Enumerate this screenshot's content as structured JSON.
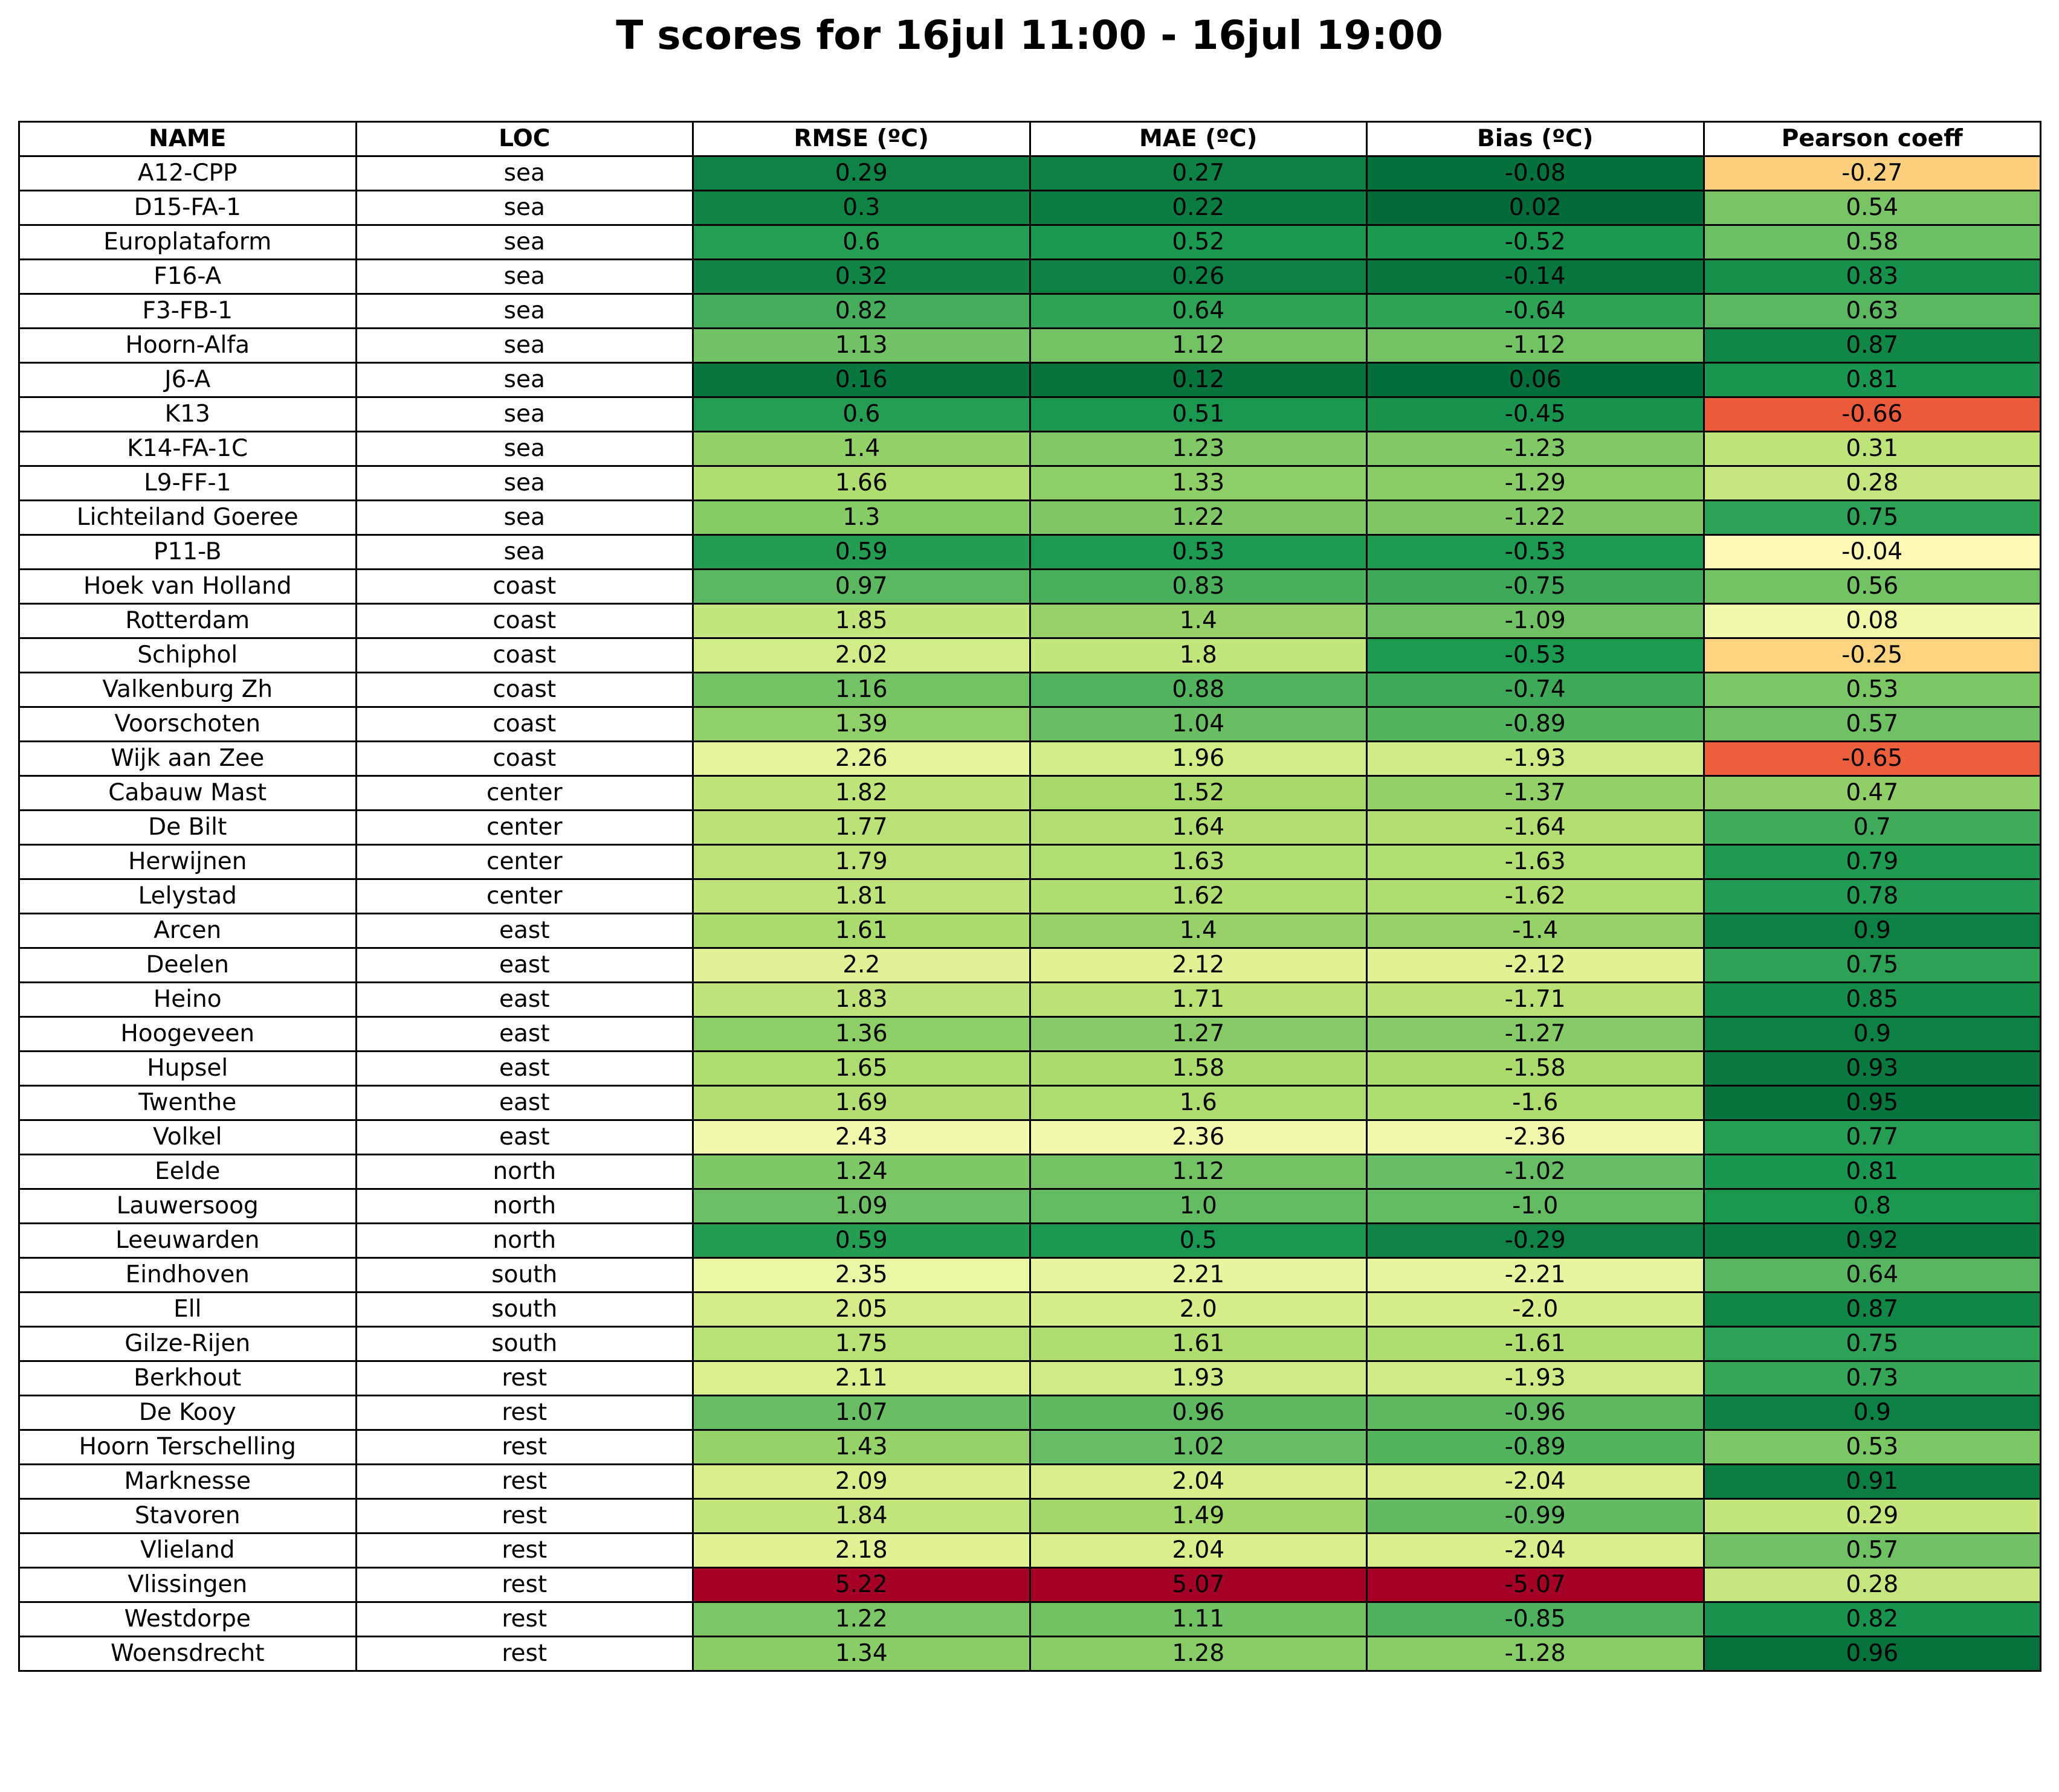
{
  "chart_data": {
    "type": "table",
    "title": "T scores for 16jul 11:00 - 16jul 19:00",
    "columns": [
      "NAME",
      "LOC",
      "RMSE (ºC)",
      "MAE (ºC)",
      "Bias (ºC)",
      "Pearson coeff"
    ],
    "colormap": "RdYlGn",
    "rows": [
      [
        "A12-CPP",
        "sea",
        "0.29",
        "0.27",
        "-0.08",
        "-0.27"
      ],
      [
        "D15-FA-1",
        "sea",
        "0.3",
        "0.22",
        "0.02",
        "0.54"
      ],
      [
        "Europlataform",
        "sea",
        "0.6",
        "0.52",
        "-0.52",
        "0.58"
      ],
      [
        "F16-A",
        "sea",
        "0.32",
        "0.26",
        "-0.14",
        "0.83"
      ],
      [
        "F3-FB-1",
        "sea",
        "0.82",
        "0.64",
        "-0.64",
        "0.63"
      ],
      [
        "Hoorn-Alfa",
        "sea",
        "1.13",
        "1.12",
        "-1.12",
        "0.87"
      ],
      [
        "J6-A",
        "sea",
        "0.16",
        "0.12",
        "0.06",
        "0.81"
      ],
      [
        "K13",
        "sea",
        "0.6",
        "0.51",
        "-0.45",
        "-0.66"
      ],
      [
        "K14-FA-1C",
        "sea",
        "1.4",
        "1.23",
        "-1.23",
        "0.31"
      ],
      [
        "L9-FF-1",
        "sea",
        "1.66",
        "1.33",
        "-1.29",
        "0.28"
      ],
      [
        "Lichteiland Goeree",
        "sea",
        "1.3",
        "1.22",
        "-1.22",
        "0.75"
      ],
      [
        "P11-B",
        "sea",
        "0.59",
        "0.53",
        "-0.53",
        "-0.04"
      ],
      [
        "Hoek van Holland",
        "coast",
        "0.97",
        "0.83",
        "-0.75",
        "0.56"
      ],
      [
        "Rotterdam",
        "coast",
        "1.85",
        "1.4",
        "-1.09",
        "0.08"
      ],
      [
        "Schiphol",
        "coast",
        "2.02",
        "1.8",
        "-0.53",
        "-0.25"
      ],
      [
        "Valkenburg Zh",
        "coast",
        "1.16",
        "0.88",
        "-0.74",
        "0.53"
      ],
      [
        "Voorschoten",
        "coast",
        "1.39",
        "1.04",
        "-0.89",
        "0.57"
      ],
      [
        "Wijk aan Zee",
        "coast",
        "2.26",
        "1.96",
        "-1.93",
        "-0.65"
      ],
      [
        "Cabauw Mast",
        "center",
        "1.82",
        "1.52",
        "-1.37",
        "0.47"
      ],
      [
        "De Bilt",
        "center",
        "1.77",
        "1.64",
        "-1.64",
        "0.7"
      ],
      [
        "Herwijnen",
        "center",
        "1.79",
        "1.63",
        "-1.63",
        "0.79"
      ],
      [
        "Lelystad",
        "center",
        "1.81",
        "1.62",
        "-1.62",
        "0.78"
      ],
      [
        "Arcen",
        "east",
        "1.61",
        "1.4",
        "-1.4",
        "0.9"
      ],
      [
        "Deelen",
        "east",
        "2.2",
        "2.12",
        "-2.12",
        "0.75"
      ],
      [
        "Heino",
        "east",
        "1.83",
        "1.71",
        "-1.71",
        "0.85"
      ],
      [
        "Hoogeveen",
        "east",
        "1.36",
        "1.27",
        "-1.27",
        "0.9"
      ],
      [
        "Hupsel",
        "east",
        "1.65",
        "1.58",
        "-1.58",
        "0.93"
      ],
      [
        "Twenthe",
        "east",
        "1.69",
        "1.6",
        "-1.6",
        "0.95"
      ],
      [
        "Volkel",
        "east",
        "2.43",
        "2.36",
        "-2.36",
        "0.77"
      ],
      [
        "Eelde",
        "north",
        "1.24",
        "1.12",
        "-1.02",
        "0.81"
      ],
      [
        "Lauwersoog",
        "north",
        "1.09",
        "1.0",
        "-1.0",
        "0.8"
      ],
      [
        "Leeuwarden",
        "north",
        "0.59",
        "0.5",
        "-0.29",
        "0.92"
      ],
      [
        "Eindhoven",
        "south",
        "2.35",
        "2.21",
        "-2.21",
        "0.64"
      ],
      [
        "Ell",
        "south",
        "2.05",
        "2.0",
        "-2.0",
        "0.87"
      ],
      [
        "Gilze-Rijen",
        "south",
        "1.75",
        "1.61",
        "-1.61",
        "0.75"
      ],
      [
        "Berkhout",
        "rest",
        "2.11",
        "1.93",
        "-1.93",
        "0.73"
      ],
      [
        "De Kooy",
        "rest",
        "1.07",
        "0.96",
        "-0.96",
        "0.9"
      ],
      [
        "Hoorn Terschelling",
        "rest",
        "1.43",
        "1.02",
        "-0.89",
        "0.53"
      ],
      [
        "Marknesse",
        "rest",
        "2.09",
        "2.04",
        "-2.04",
        "0.91"
      ],
      [
        "Stavoren",
        "rest",
        "1.84",
        "1.49",
        "-0.99",
        "0.29"
      ],
      [
        "Vlieland",
        "rest",
        "2.18",
        "2.04",
        "-2.04",
        "0.57"
      ],
      [
        "Vlissingen",
        "rest",
        "5.22",
        "5.07",
        "-5.07",
        "0.28"
      ],
      [
        "Westdorpe",
        "rest",
        "1.22",
        "1.11",
        "-0.85",
        "0.82"
      ],
      [
        "Woensdrecht",
        "rest",
        "1.34",
        "1.28",
        "-1.28",
        "0.96"
      ]
    ]
  }
}
